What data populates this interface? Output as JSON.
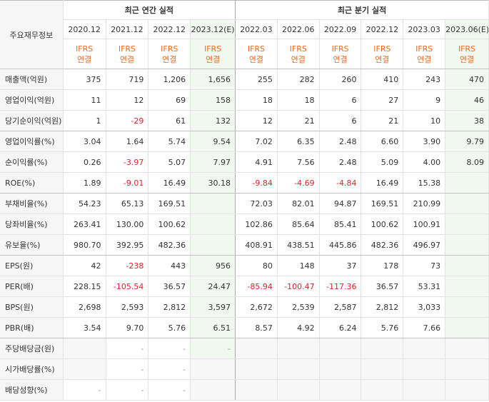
{
  "header": {
    "row_label": "주요재무정보",
    "annual_group": "최근 연간 실적",
    "quarter_group": "최근 분기 실적",
    "periods": [
      "2020.12",
      "2021.12",
      "2022.12",
      "2023.12(E)",
      "2022.03",
      "2022.06",
      "2022.09",
      "2022.12",
      "2023.03",
      "2023.06(E)"
    ],
    "basis_top": "IFRS",
    "basis_bottom": "연결"
  },
  "rows": [
    {
      "label": "매출액(억원)",
      "values": [
        "375",
        "719",
        "1,206",
        "1,656",
        "255",
        "282",
        "260",
        "410",
        "243",
        "470"
      ]
    },
    {
      "label": "영업이익(억원)",
      "values": [
        "11",
        "12",
        "69",
        "158",
        "18",
        "18",
        "6",
        "27",
        "9",
        "46"
      ]
    },
    {
      "label": "당기순이익(억원)",
      "values": [
        "1",
        "-29",
        "61",
        "132",
        "12",
        "21",
        "6",
        "21",
        "10",
        "38"
      ]
    },
    {
      "label": "영업이익률(%)",
      "values": [
        "3.04",
        "1.64",
        "5.74",
        "9.54",
        "7.02",
        "6.35",
        "2.48",
        "6.60",
        "3.90",
        "9.79"
      ]
    },
    {
      "label": "순이익률(%)",
      "values": [
        "0.26",
        "-3.97",
        "5.07",
        "7.97",
        "4.91",
        "7.56",
        "2.48",
        "5.09",
        "4.00",
        "8.09"
      ]
    },
    {
      "label": "ROE(%)",
      "values": [
        "1.89",
        "-9.01",
        "16.49",
        "30.18",
        "-9.84",
        "-4.69",
        "-4.84",
        "16.49",
        "15.38",
        ""
      ]
    },
    {
      "label": "부채비율(%)",
      "values": [
        "54.23",
        "65.13",
        "169.51",
        "",
        "72.03",
        "82.01",
        "94.87",
        "169.51",
        "210.99",
        ""
      ]
    },
    {
      "label": "당좌비율(%)",
      "values": [
        "263.41",
        "130.00",
        "100.62",
        "",
        "102.86",
        "85.64",
        "85.41",
        "100.62",
        "100.91",
        ""
      ]
    },
    {
      "label": "유보율(%)",
      "values": [
        "980.70",
        "392.95",
        "482.36",
        "",
        "408.91",
        "438.51",
        "445.86",
        "482.36",
        "496.97",
        ""
      ]
    },
    {
      "label": "EPS(원)",
      "values": [
        "42",
        "-238",
        "443",
        "956",
        "80",
        "148",
        "37",
        "178",
        "73",
        ""
      ]
    },
    {
      "label": "PER(배)",
      "values": [
        "228.15",
        "-105.54",
        "36.57",
        "24.47",
        "-85.94",
        "-100.47",
        "-117.36",
        "36.57",
        "53.31",
        ""
      ]
    },
    {
      "label": "BPS(원)",
      "values": [
        "2,698",
        "2,593",
        "2,812",
        "3,597",
        "2,672",
        "2,539",
        "2,587",
        "2,812",
        "3,033",
        ""
      ]
    },
    {
      "label": "PBR(배)",
      "values": [
        "3.54",
        "9.70",
        "5.76",
        "6.51",
        "8.57",
        "4.92",
        "6.24",
        "5.76",
        "7.66",
        ""
      ]
    },
    {
      "label": "주당배당금(원)",
      "values": [
        "",
        "-",
        "-",
        "-",
        "",
        "",
        "",
        "",
        "",
        ""
      ]
    },
    {
      "label": "시가배당률(%)",
      "values": [
        "",
        "-",
        "-",
        "",
        "",
        "",
        "",
        "",
        "",
        ""
      ]
    },
    {
      "label": "배당성향(%)",
      "values": [
        "-",
        "-",
        "-",
        "",
        "",
        "",
        "",
        "",
        "",
        ""
      ]
    }
  ]
}
